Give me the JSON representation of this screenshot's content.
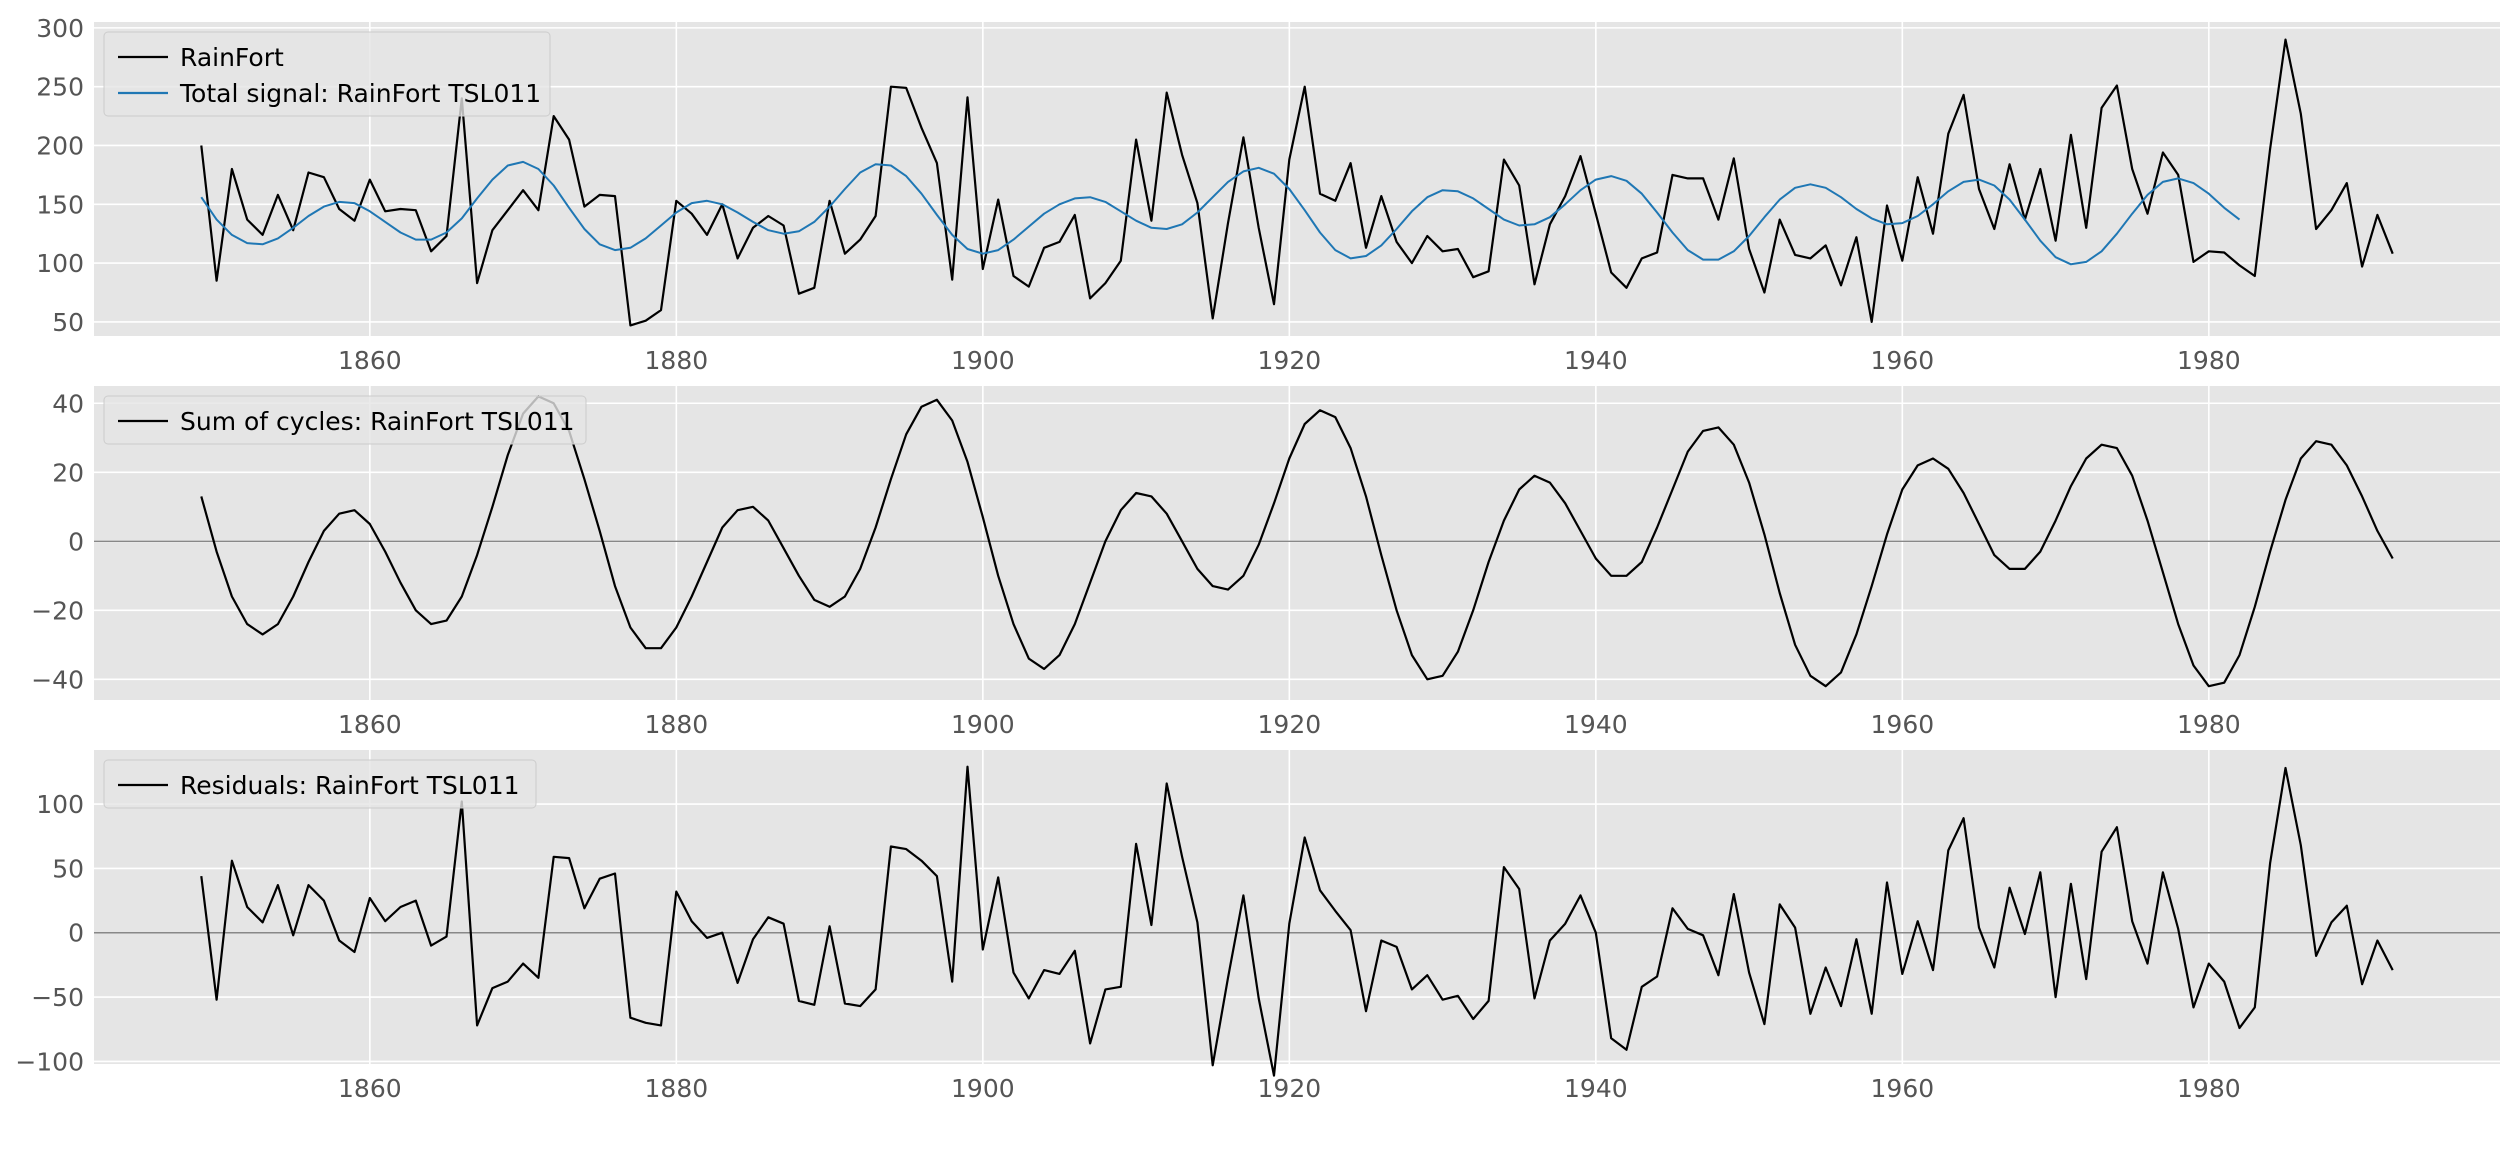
{
  "chart_data": [
    {
      "type": "line",
      "x_start": 1849,
      "x_step": 1,
      "xlim": [
        1842,
        1999
      ],
      "ylim": [
        38,
        305
      ],
      "x_ticks": [
        1860,
        1880,
        1900,
        1920,
        1940,
        1960,
        1980
      ],
      "y_ticks": [
        50,
        100,
        150,
        200,
        250,
        300
      ],
      "grid": true,
      "zero_line": false,
      "legend_position": "upper-left",
      "series": [
        {
          "name": "RainFort",
          "color": "#000000",
          "values": [
            200,
            85,
            180,
            137,
            124,
            158,
            128,
            177,
            173,
            146,
            136,
            171,
            144,
            146,
            145,
            110,
            123,
            240,
            83,
            128,
            145,
            162,
            145,
            225,
            205,
            148,
            158,
            157,
            47,
            51,
            60,
            153,
            142,
            124,
            150,
            104,
            130,
            140,
            132,
            74,
            79,
            153,
            108,
            120,
            140,
            250,
            249,
            215,
            185,
            86,
            241,
            95,
            154,
            89,
            80,
            113,
            118,
            141,
            70,
            83,
            102,
            205,
            136,
            245,
            192,
            151,
            53,
            134,
            207,
            130,
            65,
            188,
            250,
            159,
            153,
            185,
            113,
            157,
            118,
            100,
            123,
            110,
            112,
            88,
            93,
            188,
            166,
            82,
            133,
            157,
            191,
            142,
            92,
            79,
            104,
            109,
            175,
            172,
            172,
            137,
            189,
            112,
            75,
            137,
            107,
            104,
            115,
            81,
            122,
            50,
            149,
            102,
            173,
            125,
            210,
            243,
            163,
            129,
            184,
            137,
            180,
            119,
            209,
            130,
            232,
            251,
            180,
            142,
            194,
            175,
            101,
            110,
            109,
            98,
            89,
            197,
            290,
            227,
            129,
            145,
            168,
            97,
            141,
            108
          ]
        },
        {
          "name": "Total signal: RainFort TSL011",
          "color": "#1f77b4",
          "values": [
            156,
            137,
            124,
            117,
            116,
            121,
            130,
            140,
            148,
            152,
            151,
            144,
            135,
            126,
            120,
            120,
            126,
            138,
            155,
            171,
            183,
            186,
            180,
            166,
            147,
            129,
            116,
            111,
            113,
            121,
            132,
            143,
            151,
            153,
            150,
            143,
            135,
            128,
            125,
            127,
            135,
            148,
            163,
            177,
            184,
            183,
            174,
            159,
            141,
            124,
            112,
            108,
            111,
            120,
            131,
            142,
            150,
            155,
            156,
            152,
            144,
            136,
            130,
            129,
            133,
            143,
            156,
            169,
            178,
            181,
            176,
            163,
            145,
            126,
            111,
            104,
            106,
            115,
            129,
            144,
            156,
            162,
            161,
            155,
            146,
            137,
            132,
            133,
            139,
            150,
            162,
            171,
            174,
            170,
            159,
            143,
            126,
            111,
            103,
            103,
            110,
            123,
            139,
            154,
            164,
            167,
            164,
            156,
            146,
            138,
            133,
            134,
            140,
            150,
            161,
            169,
            171,
            166,
            154,
            137,
            119,
            105,
            99,
            101,
            110,
            125,
            142,
            158,
            169,
            172,
            168,
            159,
            147,
            137
          ]
        }
      ]
    },
    {
      "type": "line",
      "x_start": 1849,
      "x_step": 1,
      "xlim": [
        1842,
        1999
      ],
      "ylim": [
        -46,
        45
      ],
      "x_ticks": [
        1860,
        1880,
        1900,
        1920,
        1940,
        1960,
        1980
      ],
      "y_ticks": [
        -40,
        -20,
        0,
        20,
        40
      ],
      "grid": true,
      "zero_line": true,
      "legend_position": "upper-left",
      "series": [
        {
          "name": "Sum of cycles: RainFort TSL011",
          "color": "#000000",
          "values": [
            13,
            -3,
            -16,
            -24,
            -27,
            -24,
            -16,
            -6,
            3,
            8,
            9,
            5,
            -3,
            -12,
            -20,
            -24,
            -23,
            -16,
            -4,
            10,
            25,
            37,
            42,
            40,
            32,
            18,
            3,
            -13,
            -25,
            -31,
            -31,
            -25,
            -16,
            -6,
            4,
            9,
            10,
            6,
            -2,
            -10,
            -17,
            -19,
            -16,
            -8,
            4,
            18,
            31,
            39,
            41,
            35,
            23,
            7,
            -10,
            -24,
            -34,
            -37,
            -33,
            -24,
            -12,
            0,
            9,
            14,
            13,
            8,
            0,
            -8,
            -13,
            -14,
            -10,
            -1,
            11,
            24,
            34,
            38,
            36,
            27,
            13,
            -4,
            -20,
            -33,
            -40,
            -39,
            -32,
            -20,
            -6,
            6,
            15,
            19,
            17,
            11,
            3,
            -5,
            -10,
            -10,
            -6,
            4,
            15,
            26,
            32,
            33,
            28,
            17,
            2,
            -15,
            -30,
            -39,
            -42,
            -38,
            -27,
            -13,
            2,
            15,
            22,
            24,
            21,
            14,
            5,
            -4,
            -8,
            -8,
            -3,
            6,
            16,
            24,
            28,
            27,
            19,
            6,
            -9,
            -24,
            -36,
            -42,
            -41,
            -33,
            -19,
            -3,
            12,
            24,
            29,
            28,
            22,
            13,
            3,
            -5
          ]
        }
      ]
    },
    {
      "type": "line",
      "x_start": 1849,
      "x_step": 1,
      "xlim": [
        1842,
        1999
      ],
      "ylim": [
        -102,
        142
      ],
      "x_ticks": [
        1860,
        1880,
        1900,
        1920,
        1940,
        1960,
        1980
      ],
      "y_ticks": [
        -100,
        -50,
        0,
        50,
        100
      ],
      "grid": true,
      "zero_line": true,
      "legend_position": "upper-left",
      "series": [
        {
          "name": "Residuals: RainFort TSL011",
          "color": "#000000",
          "values": [
            44,
            -52,
            56,
            20,
            8,
            37,
            -2,
            37,
            25,
            -6,
            -15,
            27,
            9,
            20,
            25,
            -10,
            -3,
            102,
            -72,
            -43,
            -38,
            -24,
            -35,
            59,
            58,
            19,
            42,
            46,
            -66,
            -70,
            -72,
            32,
            9,
            -4,
            0,
            -39,
            -5,
            12,
            7,
            -53,
            -56,
            5,
            -55,
            -57,
            -44,
            67,
            65,
            56,
            44,
            -38,
            129,
            -13,
            43,
            -31,
            -51,
            -29,
            -32,
            -14,
            -86,
            -44,
            -42,
            69,
            6,
            116,
            59,
            8,
            -103,
            -35,
            29,
            -51,
            -111,
            7,
            74,
            33,
            17,
            2,
            -61,
            -6,
            -11,
            -44,
            -33,
            -52,
            -49,
            -67,
            -53,
            51,
            34,
            -51,
            -6,
            7,
            29,
            0,
            -82,
            -91,
            -42,
            -34,
            19,
            3,
            -2,
            -33,
            30,
            -31,
            -71,
            22,
            4,
            -63,
            -27,
            -57,
            -5,
            -63,
            39,
            -32,
            9,
            -29,
            64,
            89,
            4,
            -27,
            35,
            -1,
            47,
            -50,
            38,
            -36,
            63,
            82,
            9,
            -24,
            47,
            3,
            -58,
            -24,
            -38,
            -74,
            -58,
            54,
            128,
            68,
            -18,
            8,
            21,
            -40,
            -6,
            -29
          ]
        }
      ]
    }
  ]
}
